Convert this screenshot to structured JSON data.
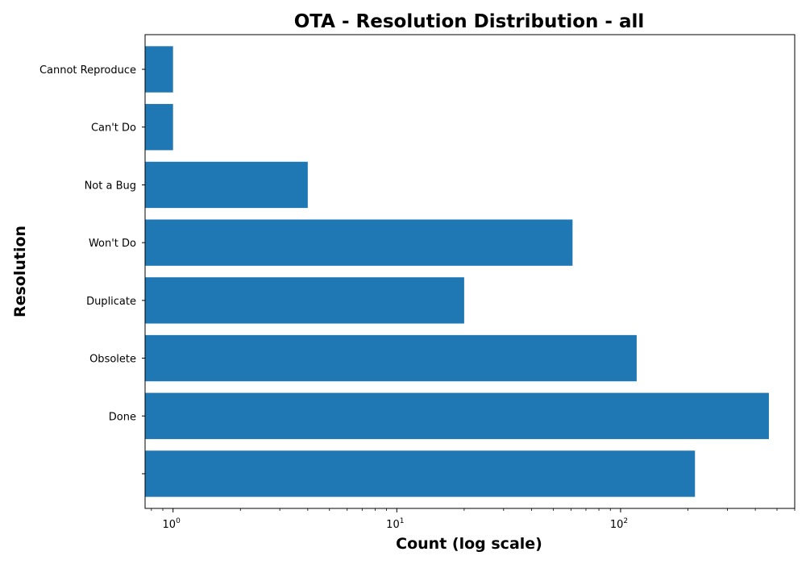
{
  "chart_data": {
    "type": "bar",
    "orientation": "horizontal",
    "title": "OTA - Resolution Distribution - all",
    "xlabel": "Count (log scale)",
    "ylabel": "Resolution",
    "x_scale": "log",
    "xlim": [
      0.75,
      600
    ],
    "x_ticks": [
      {
        "value": 1,
        "base": "10",
        "exp": "0"
      },
      {
        "value": 10,
        "base": "10",
        "exp": "1"
      },
      {
        "value": 100,
        "base": "10",
        "exp": "2"
      }
    ],
    "categories": [
      "Cannot Reproduce",
      "Can't Do",
      "Not a Bug",
      "Won't Do",
      "Duplicate",
      "Obsolete",
      "Done",
      ""
    ],
    "values": [
      1,
      1,
      4,
      61,
      20,
      118,
      460,
      215
    ],
    "bar_color": "#1f77b4",
    "grid": false,
    "legend": "none"
  }
}
